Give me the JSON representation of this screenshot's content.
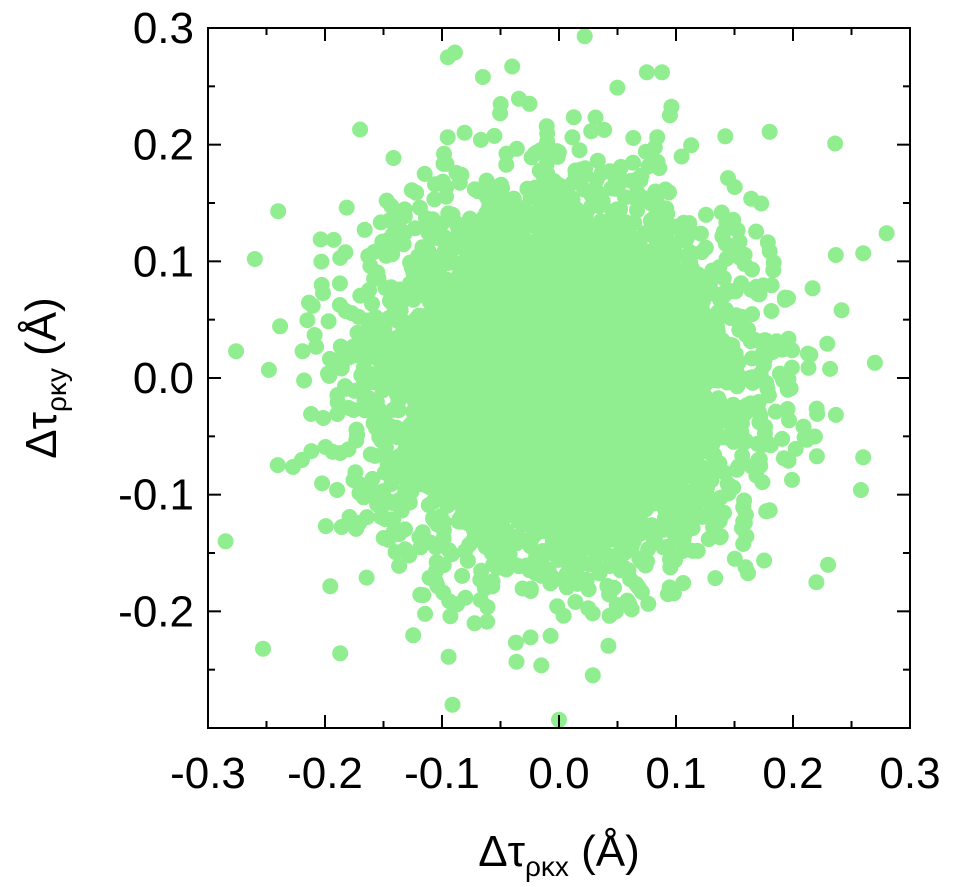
{
  "chart_data": {
    "type": "scatter",
    "title": "",
    "xlabel": {
      "main": "Δτ",
      "sub": "ρκx",
      "unit": " (Å)"
    },
    "ylabel": {
      "main": "Δτ",
      "sub": "ρκy",
      "unit": " (Å)"
    },
    "xlim": [
      -0.3,
      0.3
    ],
    "ylim": [
      -0.3,
      0.3
    ],
    "x_ticks": [
      -0.3,
      -0.2,
      -0.1,
      0.0,
      0.1,
      0.2,
      0.3
    ],
    "x_tick_labels": [
      "-0.3",
      "-0.2",
      "-0.1",
      "0.0",
      "0.1",
      "0.2",
      "0.3"
    ],
    "y_ticks": [
      -0.2,
      -0.1,
      0.0,
      0.1,
      0.2,
      0.3
    ],
    "y_tick_labels": [
      "-0.2",
      "-0.1",
      "0.0",
      "0.1",
      "0.2",
      "0.3"
    ],
    "grid": false,
    "legend": "none",
    "series": [
      {
        "color": "#90ee90",
        "distribution": {
          "mean_x": 0.0,
          "mean_y": 0.0,
          "std_x": 0.075,
          "std_y": 0.075,
          "n_points": 6000
        },
        "outliers": [
          [
            0.022,
            0.293
          ],
          [
            -0.089,
            0.279
          ],
          [
            -0.095,
            0.275
          ],
          [
            -0.04,
            0.267
          ],
          [
            -0.065,
            0.258
          ],
          [
            0.075,
            0.262
          ],
          [
            0.088,
            0.262
          ],
          [
            -0.26,
            0.102
          ],
          [
            -0.276,
            0.023
          ],
          [
            -0.285,
            -0.14
          ],
          [
            -0.253,
            -0.232
          ],
          [
            -0.187,
            -0.236
          ],
          [
            -0.091,
            -0.28
          ],
          [
            0.0,
            -0.293
          ],
          [
            0.236,
            0.201
          ],
          [
            0.28,
            0.124
          ],
          [
            0.27,
            0.013
          ],
          [
            0.258,
            -0.096
          ],
          [
            0.26,
            -0.068
          ],
          [
            0.23,
            -0.16
          ],
          [
            0.22,
            -0.175
          ],
          [
            -0.24,
            0.143
          ],
          [
            -0.17,
            0.213
          ],
          [
            0.18,
            0.211
          ],
          [
            0.26,
            0.107
          ]
        ]
      }
    ]
  }
}
